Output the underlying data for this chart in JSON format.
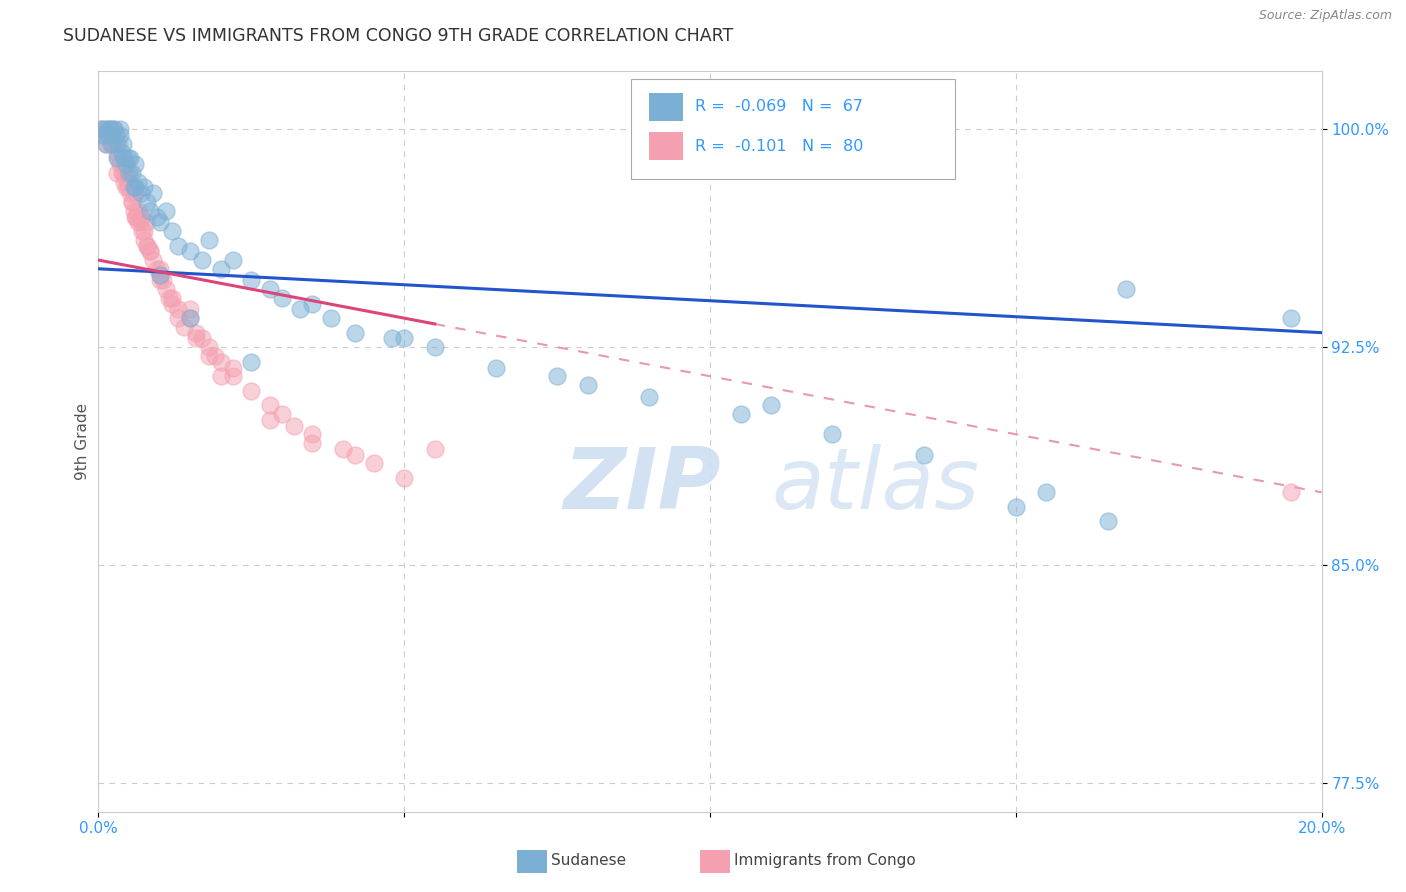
{
  "title": "SUDANESE VS IMMIGRANTS FROM CONGO 9TH GRADE CORRELATION CHART",
  "source": "Source: ZipAtlas.com",
  "ylabel": "9th Grade",
  "xlim": [
    0.0,
    20.0
  ],
  "ylim": [
    76.5,
    102.0
  ],
  "yticks": [
    77.5,
    85.0,
    92.5,
    100.0
  ],
  "ytick_labels": [
    "77.5%",
    "85.0%",
    "92.5%",
    "100.0%"
  ],
  "xticks": [
    0.0,
    5.0,
    10.0,
    15.0,
    20.0
  ],
  "xtick_labels": [
    "0.0%",
    "",
    "",
    "",
    "20.0%"
  ],
  "series1_label": "Sudanese",
  "series1_R": "-0.069",
  "series1_N": "67",
  "series1_color": "#7bafd4",
  "series2_label": "Immigrants from Congo",
  "series2_R": "-0.101",
  "series2_N": "80",
  "series2_color": "#f4a0b0",
  "trend1_color": "#2255cc",
  "trend2_color": "#dd4477",
  "trend1_y0": 95.2,
  "trend1_y20": 93.0,
  "trend2_y0": 95.5,
  "trend2_y20": 87.5,
  "trend2_solid_end_x": 5.5,
  "watermark_zip": "ZIP",
  "watermark_atlas": "atlas",
  "background_color": "#ffffff",
  "grid_color": "#cccccc",
  "tick_color": "#3399ff",
  "sudanese_x": [
    0.05,
    0.08,
    0.1,
    0.12,
    0.15,
    0.18,
    0.2,
    0.22,
    0.25,
    0.28,
    0.3,
    0.32,
    0.35,
    0.38,
    0.4,
    0.42,
    0.45,
    0.48,
    0.5,
    0.52,
    0.55,
    0.58,
    0.6,
    0.65,
    0.7,
    0.75,
    0.8,
    0.85,
    0.9,
    0.95,
    1.0,
    1.1,
    1.2,
    1.3,
    1.5,
    1.7,
    1.8,
    2.0,
    2.2,
    2.5,
    2.8,
    3.0,
    3.3,
    3.5,
    3.8,
    4.2,
    4.8,
    5.5,
    6.5,
    7.5,
    9.0,
    10.5,
    12.0,
    13.5,
    15.5,
    16.5,
    16.8,
    0.35,
    0.6,
    1.0,
    1.5,
    2.5,
    5.0,
    8.0,
    11.0,
    15.0,
    19.5
  ],
  "sudanese_y": [
    100.0,
    99.8,
    100.0,
    99.5,
    99.8,
    100.0,
    100.0,
    99.5,
    100.0,
    99.8,
    99.0,
    99.5,
    99.8,
    99.2,
    99.5,
    99.0,
    98.8,
    99.0,
    98.5,
    99.0,
    98.5,
    98.0,
    98.8,
    98.2,
    97.8,
    98.0,
    97.5,
    97.2,
    97.8,
    97.0,
    96.8,
    97.2,
    96.5,
    96.0,
    95.8,
    95.5,
    96.2,
    95.2,
    95.5,
    94.8,
    94.5,
    94.2,
    93.8,
    94.0,
    93.5,
    93.0,
    92.8,
    92.5,
    91.8,
    91.5,
    90.8,
    90.2,
    89.5,
    88.8,
    87.5,
    86.5,
    94.5,
    100.0,
    98.0,
    95.0,
    93.5,
    92.0,
    92.8,
    91.2,
    90.5,
    87.0,
    93.5
  ],
  "congo_x": [
    0.05,
    0.08,
    0.1,
    0.12,
    0.15,
    0.18,
    0.2,
    0.22,
    0.25,
    0.28,
    0.3,
    0.32,
    0.35,
    0.38,
    0.4,
    0.42,
    0.45,
    0.48,
    0.5,
    0.52,
    0.55,
    0.58,
    0.6,
    0.62,
    0.65,
    0.68,
    0.7,
    0.72,
    0.75,
    0.78,
    0.8,
    0.85,
    0.9,
    0.95,
    1.0,
    1.05,
    1.1,
    1.15,
    1.2,
    1.3,
    1.4,
    1.5,
    1.6,
    1.7,
    1.8,
    1.9,
    2.0,
    2.2,
    2.5,
    2.8,
    3.0,
    3.2,
    3.5,
    4.0,
    4.5,
    5.0,
    0.3,
    0.45,
    0.55,
    0.65,
    0.75,
    0.85,
    1.0,
    1.2,
    1.5,
    1.8,
    2.2,
    2.8,
    3.5,
    4.2,
    0.2,
    0.4,
    0.6,
    0.8,
    1.0,
    1.3,
    1.6,
    2.0,
    5.5,
    19.5
  ],
  "congo_y": [
    100.0,
    99.8,
    100.0,
    99.5,
    99.8,
    100.0,
    99.5,
    99.8,
    100.0,
    99.5,
    99.2,
    99.0,
    98.8,
    98.5,
    98.8,
    98.2,
    98.5,
    98.0,
    98.2,
    97.8,
    97.5,
    97.2,
    97.8,
    97.0,
    97.2,
    96.8,
    97.0,
    96.5,
    96.2,
    96.8,
    96.0,
    95.8,
    95.5,
    95.2,
    95.0,
    94.8,
    94.5,
    94.2,
    94.0,
    93.5,
    93.2,
    93.8,
    93.0,
    92.8,
    92.5,
    92.2,
    92.0,
    91.5,
    91.0,
    90.5,
    90.2,
    89.8,
    89.5,
    89.0,
    88.5,
    88.0,
    98.5,
    98.0,
    97.5,
    96.8,
    96.5,
    95.8,
    95.2,
    94.2,
    93.5,
    92.2,
    91.8,
    90.0,
    89.2,
    88.8,
    99.5,
    98.5,
    97.0,
    96.0,
    94.8,
    93.8,
    92.8,
    91.5,
    89.0,
    87.5
  ]
}
